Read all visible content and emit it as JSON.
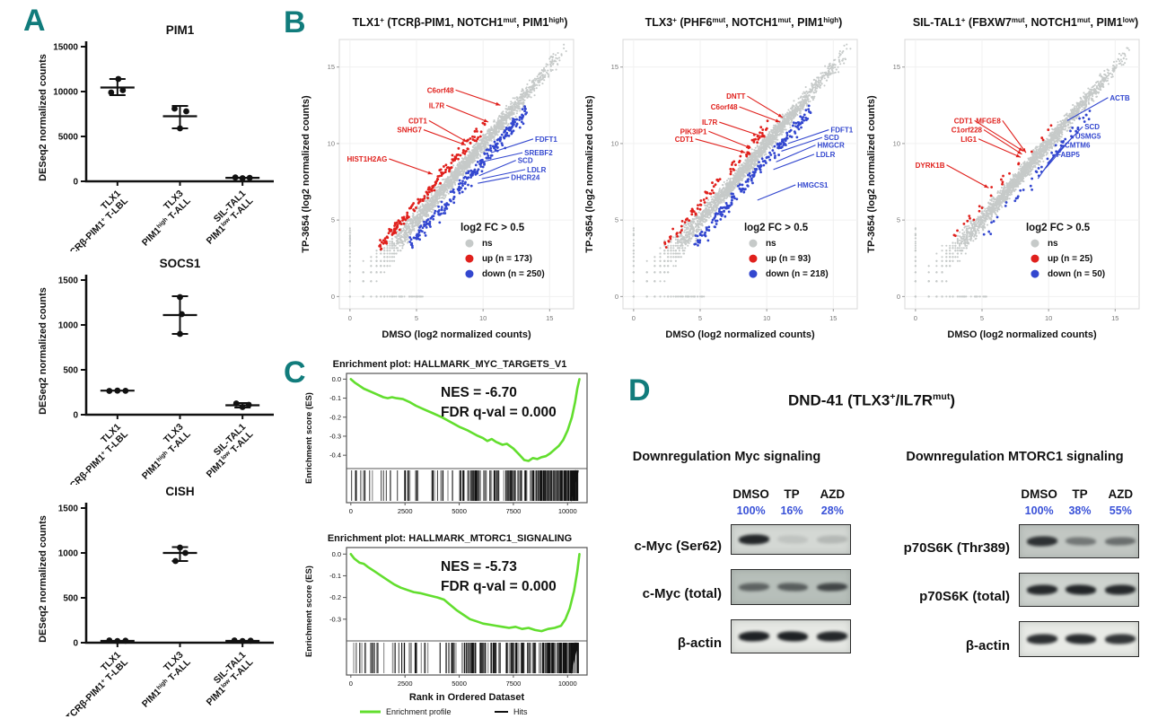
{
  "figure": {
    "panel_letters": {
      "a": "A",
      "b": "B",
      "c": "C",
      "d": "D"
    },
    "colors": {
      "accent_teal": "#117c7c",
      "up_red": "#e0201c",
      "down_blue": "#3347cf",
      "ns_gray": "#c6cac9",
      "gsea_green": "#62de2e",
      "pct_blue": "#3a52d8",
      "axis_black": "#111111"
    }
  },
  "chart_data": [
    {
      "container": "dotplot-pim1",
      "type": "scatter",
      "variant": "dotplot",
      "title": "PIM1",
      "ylabel": "DESeq2 normalized counts",
      "ylim": [
        0,
        15000
      ],
      "yticks": [
        0,
        5000,
        10000,
        15000
      ],
      "categories": [
        [
          "TLX1",
          "TCRβ-PIM1^+^ T-LBL"
        ],
        [
          "TLX3",
          "PIM1^high^ T-ALL"
        ],
        [
          "SIL-TAL1",
          "PIM1^low^ T-ALL"
        ]
      ],
      "points": [
        [
          [
            9900,
            -7
          ],
          [
            10150,
            6
          ],
          [
            11400,
            1
          ]
        ],
        [
          [
            8100,
            -6
          ],
          [
            7800,
            7
          ],
          [
            5900,
            0
          ]
        ],
        [
          [
            430,
            -8
          ],
          [
            350,
            0
          ],
          [
            390,
            8
          ]
        ]
      ],
      "mean": [
        10450,
        7250,
        390
      ],
      "err": [
        [
          9600,
          11400
        ],
        [
          5900,
          8400
        ],
        [
          300,
          470
        ]
      ]
    },
    {
      "container": "dotplot-socs1",
      "type": "scatter",
      "variant": "dotplot",
      "title": "SOCS1",
      "ylabel": "DESeq2 normalized counts",
      "ylim": [
        0,
        1500
      ],
      "yticks": [
        0,
        500,
        1000,
        1500
      ],
      "categories": [
        [
          "TLX1",
          "TCRβ-PIM1^+^ T-LBL"
        ],
        [
          "TLX3",
          "PIM1^high^ T-ALL"
        ],
        [
          "SIL-TAL1",
          "PIM1^low^ T-ALL"
        ]
      ],
      "points": [
        [
          [
            265,
            -9
          ],
          [
            268,
            0
          ],
          [
            266,
            9
          ]
        ],
        [
          [
            900,
            0
          ],
          [
            1120,
            2
          ],
          [
            1310,
            0
          ]
        ],
        [
          [
            125,
            -7
          ],
          [
            85,
            0
          ],
          [
            110,
            7
          ]
        ]
      ],
      "mean": [
        268,
        1110,
        105
      ],
      "err": [
        [
          264,
          272
        ],
        [
          900,
          1320
        ],
        [
          80,
          130
        ]
      ]
    },
    {
      "container": "dotplot-cish",
      "type": "scatter",
      "variant": "dotplot",
      "title": "CISH",
      "ylabel": "DESeq2 normalized counts",
      "ylim": [
        0,
        1500
      ],
      "yticks": [
        0,
        500,
        1000,
        1500
      ],
      "categories": [
        [
          "TLX1",
          "TCRβ-PIM1^+^ T-LBL"
        ],
        [
          "TLX3",
          "PIM1^high^ T-ALL"
        ],
        [
          "SIL-TAL1",
          "PIM1^low^ T-ALL"
        ]
      ],
      "points": [
        [
          [
            25,
            -9
          ],
          [
            18,
            0
          ],
          [
            22,
            9
          ]
        ],
        [
          [
            910,
            -5
          ],
          [
            1060,
            0
          ],
          [
            1000,
            6
          ]
        ],
        [
          [
            25,
            -9
          ],
          [
            18,
            0
          ],
          [
            22,
            9
          ]
        ]
      ],
      "mean": [
        20,
        1000,
        20
      ],
      "err": [
        [
          17,
          27
        ],
        [
          910,
          1065
        ],
        [
          17,
          27
        ]
      ]
    },
    {
      "container": "scatter-tlx1",
      "type": "scatter",
      "variant": "fcscatter",
      "seed": 11,
      "title": "TLX1^+^ (TCRβ-PIM1, NOTCH1^mut^, PIM1^high^)",
      "xlabel": "DMSO (log2 normalized counts)",
      "ylabel": "TP-3654 (log2 normalized counts)",
      "ticks": [
        0,
        5,
        10,
        15
      ],
      "xlim": [
        -0.8,
        16.8
      ],
      "ylim": [
        -0.8,
        16.8
      ],
      "n_up": 173,
      "n_down": 250,
      "legend": {
        "title": "log2 FC > 0.5",
        "items": [
          {
            "label": "ns",
            "key": "ns"
          },
          {
            "label": "up (n = 173)",
            "key": "up"
          },
          {
            "label": "down (n = 250)",
            "key": "down"
          }
        ]
      },
      "labels_up": [
        {
          "text": "C6orf48",
          "x": 7.8,
          "y": 13.5,
          "tx": 11.3,
          "ty": 12.5
        },
        {
          "text": "IL7R",
          "x": 7.1,
          "y": 12.5,
          "tx": 10.4,
          "ty": 11.4
        },
        {
          "text": "CDT1",
          "x": 5.8,
          "y": 11.5,
          "tx": 8.8,
          "ty": 10.1
        },
        {
          "text": "SNHG7",
          "x": 5.4,
          "y": 10.9,
          "tx": 8.7,
          "ty": 9.9
        },
        {
          "text": "HIST1H2AG",
          "x": 2.8,
          "y": 9.0,
          "tx": 6.2,
          "ty": 8.0
        }
      ],
      "labels_down": [
        {
          "text": "FDFT1",
          "x": 13.9,
          "y": 10.3,
          "tx": 10.6,
          "ty": 9.4
        },
        {
          "text": "SREBF2",
          "x": 13.1,
          "y": 9.4,
          "tx": 9.9,
          "ty": 8.8
        },
        {
          "text": "SCD",
          "x": 12.6,
          "y": 8.9,
          "tx": 9.7,
          "ty": 7.9
        },
        {
          "text": "LDLR",
          "x": 13.3,
          "y": 8.3,
          "tx": 9.9,
          "ty": 7.7
        },
        {
          "text": "DHCR24",
          "x": 12.1,
          "y": 7.8,
          "tx": 9.6,
          "ty": 7.4
        }
      ]
    },
    {
      "container": "scatter-tlx3",
      "type": "scatter",
      "variant": "fcscatter",
      "seed": 22,
      "title": "TLX3^+^ (PHF6^mut^, NOTCH1^mut^, PIM1^high^)",
      "xlabel": "DMSO (log2 normalized counts)",
      "ylabel": "TP-3654 (log2 normalized counts)",
      "ticks": [
        0,
        5,
        10,
        15
      ],
      "xlim": [
        -0.8,
        16.8
      ],
      "ylim": [
        -0.8,
        16.8
      ],
      "n_up": 93,
      "n_down": 218,
      "legend": {
        "title": "log2 FC > 0.5",
        "items": [
          {
            "label": "ns",
            "key": "ns"
          },
          {
            "label": "up (n = 93)",
            "key": "up"
          },
          {
            "label": "down (n = 218)",
            "key": "down"
          }
        ]
      },
      "labels_up": [
        {
          "text": "DNTT",
          "x": 8.4,
          "y": 13.1,
          "tx": 11.2,
          "ty": 11.7
        },
        {
          "text": "C6orf48",
          "x": 7.8,
          "y": 12.4,
          "tx": 11.0,
          "ty": 11.4
        },
        {
          "text": "IL7R",
          "x": 6.3,
          "y": 11.4,
          "tx": 9.9,
          "ty": 10.4
        },
        {
          "text": "PIK3IP1",
          "x": 5.5,
          "y": 10.8,
          "tx": 8.8,
          "ty": 9.7
        },
        {
          "text": "CDT1",
          "x": 4.5,
          "y": 10.3,
          "tx": 8.4,
          "ty": 9.4
        }
      ],
      "labels_down": [
        {
          "text": "FDFT1",
          "x": 14.8,
          "y": 10.9,
          "tx": 11.6,
          "ty": 10.0
        },
        {
          "text": "SCD",
          "x": 14.3,
          "y": 10.4,
          "tx": 11.1,
          "ty": 9.5
        },
        {
          "text": "HMGCR",
          "x": 13.8,
          "y": 9.9,
          "tx": 10.7,
          "ty": 8.8
        },
        {
          "text": "LDLR",
          "x": 13.7,
          "y": 9.3,
          "tx": 10.5,
          "ty": 8.3
        },
        {
          "text": "HMGCS1",
          "x": 12.3,
          "y": 7.3,
          "tx": 9.3,
          "ty": 6.3
        }
      ]
    },
    {
      "container": "scatter-siltal1",
      "type": "scatter",
      "variant": "fcscatter",
      "seed": 33,
      "title": "SIL-TAL1^+^ (FBXW7^mut^, NOTCH1^mut^, PIM1^low^)",
      "xlabel": "DMSO (log2 normalized counts)",
      "ylabel": "TP-3654 (log2 normalized counts)",
      "ticks": [
        0,
        5,
        10,
        15
      ],
      "xlim": [
        -0.8,
        16.8
      ],
      "ylim": [
        -0.8,
        16.8
      ],
      "n_up": 25,
      "n_down": 50,
      "legend": {
        "title": "log2 FC > 0.5",
        "items": [
          {
            "label": "ns",
            "key": "ns"
          },
          {
            "label": "up (n = 25)",
            "key": "up"
          },
          {
            "label": "down (n = 50)",
            "key": "down"
          }
        ]
      },
      "labels_up": [
        {
          "text": "CDT1",
          "x": 4.3,
          "y": 11.5,
          "tx": 8.1,
          "ty": 9.5
        },
        {
          "text": "MFGE8",
          "x": 6.4,
          "y": 11.5,
          "tx": 8.3,
          "ty": 9.4
        },
        {
          "text": "C1orf228",
          "x": 5.0,
          "y": 10.9,
          "tx": 8.0,
          "ty": 9.3
        },
        {
          "text": "LIG1",
          "x": 4.6,
          "y": 10.3,
          "tx": 7.9,
          "ty": 9.1
        },
        {
          "text": "DYRK1B",
          "x": 2.2,
          "y": 8.6,
          "tx": 5.5,
          "ty": 7.1
        }
      ],
      "labels_down": [
        {
          "text": "ACTB",
          "x": 14.6,
          "y": 13.0,
          "tx": 11.4,
          "ty": 11.5
        },
        {
          "text": "SCD",
          "x": 12.7,
          "y": 11.1,
          "tx": 9.9,
          "ty": 8.7
        },
        {
          "text": "USMG5",
          "x": 12.0,
          "y": 10.5,
          "tx": 9.8,
          "ty": 8.4
        },
        {
          "text": "CMTM6",
          "x": 11.2,
          "y": 9.9,
          "tx": 9.6,
          "ty": 8.2
        },
        {
          "text": "FABP5",
          "x": 10.6,
          "y": 9.3,
          "tx": 9.2,
          "ty": 7.7
        }
      ]
    },
    {
      "container": "gsea-myc",
      "type": "line",
      "variant": "gsea",
      "title": "Enrichment plot: HALLMARK_MYC_TARGETS_V1",
      "annotation": [
        "NES = -6.70",
        "FDR q-val = 0.000"
      ],
      "ylabel": "Enrichment score (ES)",
      "yticks": [
        0.0,
        -0.1,
        -0.2,
        -0.3,
        -0.4
      ],
      "ylim": [
        -0.47,
        0.03
      ],
      "xticks": [
        0,
        2500,
        5000,
        7500,
        10000
      ],
      "hits_seed": 7,
      "hits_count": 210,
      "curve": [
        [
          0,
          0
        ],
        [
          200,
          -0.02
        ],
        [
          600,
          -0.05
        ],
        [
          1000,
          -0.07
        ],
        [
          1500,
          -0.095
        ],
        [
          1700,
          -0.1
        ],
        [
          1900,
          -0.095
        ],
        [
          2100,
          -0.1
        ],
        [
          2400,
          -0.105
        ],
        [
          2700,
          -0.12
        ],
        [
          3000,
          -0.14
        ],
        [
          3400,
          -0.16
        ],
        [
          3800,
          -0.18
        ],
        [
          4200,
          -0.2
        ],
        [
          4600,
          -0.225
        ],
        [
          5000,
          -0.25
        ],
        [
          5400,
          -0.27
        ],
        [
          5800,
          -0.295
        ],
        [
          6100,
          -0.31
        ],
        [
          6300,
          -0.325
        ],
        [
          6500,
          -0.315
        ],
        [
          6700,
          -0.33
        ],
        [
          7000,
          -0.345
        ],
        [
          7200,
          -0.34
        ],
        [
          7500,
          -0.365
        ],
        [
          7800,
          -0.4
        ],
        [
          8000,
          -0.425
        ],
        [
          8200,
          -0.43
        ],
        [
          8400,
          -0.415
        ],
        [
          8600,
          -0.42
        ],
        [
          8800,
          -0.41
        ],
        [
          9000,
          -0.405
        ],
        [
          9200,
          -0.39
        ],
        [
          9400,
          -0.37
        ],
        [
          9600,
          -0.35
        ],
        [
          9800,
          -0.32
        ],
        [
          10000,
          -0.27
        ],
        [
          10200,
          -0.2
        ],
        [
          10350,
          -0.12
        ],
        [
          10450,
          -0.05
        ],
        [
          10550,
          0.0
        ]
      ]
    },
    {
      "container": "gsea-mtorc1",
      "type": "line",
      "variant": "gsea",
      "title": "Enrichment plot: HALLMARK_MTORC1_SIGNALING",
      "annotation": [
        "NES = -5.73",
        "FDR q-val = 0.000"
      ],
      "ylabel": "Enrichment score (ES)",
      "yticks": [
        0.0,
        -0.1,
        -0.2,
        -0.3
      ],
      "ylim": [
        -0.4,
        0.03
      ],
      "xticks": [
        0,
        2500,
        5000,
        7500,
        10000
      ],
      "xlabel": "Rank in Ordered Dataset",
      "legend": [
        {
          "label": "Enrichment profile"
        },
        {
          "label": "Hits"
        }
      ],
      "hits_seed": 8,
      "hits_count": 200,
      "curve": [
        [
          0,
          0
        ],
        [
          150,
          -0.02
        ],
        [
          400,
          -0.04
        ],
        [
          600,
          -0.045
        ],
        [
          800,
          -0.06
        ],
        [
          1100,
          -0.08
        ],
        [
          1400,
          -0.1
        ],
        [
          1700,
          -0.12
        ],
        [
          2000,
          -0.14
        ],
        [
          2300,
          -0.155
        ],
        [
          2600,
          -0.165
        ],
        [
          2900,
          -0.175
        ],
        [
          3200,
          -0.18
        ],
        [
          3600,
          -0.19
        ],
        [
          4000,
          -0.2
        ],
        [
          4300,
          -0.21
        ],
        [
          4600,
          -0.235
        ],
        [
          4900,
          -0.26
        ],
        [
          5200,
          -0.28
        ],
        [
          5500,
          -0.3
        ],
        [
          5800,
          -0.31
        ],
        [
          6100,
          -0.32
        ],
        [
          6400,
          -0.325
        ],
        [
          6700,
          -0.33
        ],
        [
          7000,
          -0.335
        ],
        [
          7300,
          -0.34
        ],
        [
          7600,
          -0.335
        ],
        [
          7900,
          -0.345
        ],
        [
          8200,
          -0.34
        ],
        [
          8500,
          -0.35
        ],
        [
          8800,
          -0.355
        ],
        [
          9100,
          -0.345
        ],
        [
          9400,
          -0.34
        ],
        [
          9700,
          -0.33
        ],
        [
          9900,
          -0.3
        ],
        [
          10100,
          -0.25
        ],
        [
          10300,
          -0.17
        ],
        [
          10450,
          -0.08
        ],
        [
          10550,
          0.0
        ]
      ]
    }
  ],
  "panel_d": {
    "title": "DND-41 (TLX3^+^/IL7R^mut^)",
    "columns": [
      {
        "subtitle": "Downregulation Myc signaling",
        "lanes": [
          "DMSO",
          "TP",
          "AZD"
        ],
        "percentages": [
          "100%",
          "16%",
          "28%"
        ],
        "rows": [
          {
            "label": "c-Myc (Ser62)",
            "bands": [
              0.92,
              0.1,
              0.16
            ],
            "bg": "#d4d8d4",
            "h": 34
          },
          {
            "label": "c-Myc (total)",
            "bands": [
              0.55,
              0.58,
              0.72
            ],
            "bg": "#b7bfba",
            "h": 40
          },
          {
            "label": "β-actin",
            "bands": [
              0.95,
              0.95,
              0.92
            ],
            "bg": "#e6e8e4",
            "h": 38
          }
        ]
      },
      {
        "subtitle": "Downregulation MTORC1 signaling",
        "lanes": [
          "DMSO",
          "TP",
          "AZD"
        ],
        "percentages": [
          "100%",
          "38%",
          "55%"
        ],
        "rows": [
          {
            "label": "p70S6K (Thr389)",
            "bands": [
              0.85,
              0.45,
              0.5
            ],
            "bg": "#c2c7c3",
            "h": 38
          },
          {
            "label": "p70S6K (total)",
            "bands": [
              0.9,
              0.92,
              0.9
            ],
            "bg": "#ced3cf",
            "h": 38
          },
          {
            "label": "β-actin",
            "bands": [
              0.88,
              0.9,
              0.85
            ],
            "bg": "#e8eae6",
            "h": 40
          }
        ]
      }
    ]
  }
}
